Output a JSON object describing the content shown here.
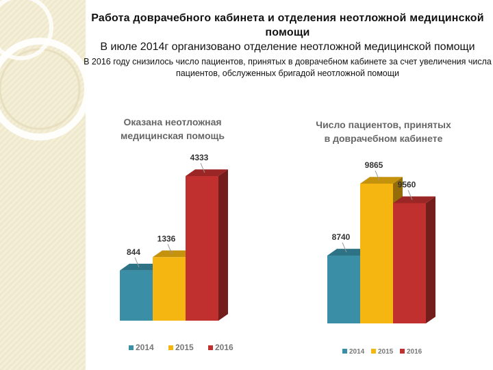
{
  "header": {
    "title": "Работа доврачебного кабинета и отделения неотложной медицинской помощи",
    "subtitle": "В июле 2014г организовано отделение неотложной медицинской помощи",
    "note": "В 2016 году снизилось число пациентов, принятых в доврачебном кабинете за счет увеличения числа пациентов, обслуженных бригадой неотложной помощи"
  },
  "colors": {
    "2014": "#3a8fa6",
    "2015": "#f6b611",
    "2016": "#c0302f"
  },
  "chart_data": [
    {
      "type": "bar",
      "title": "Оказана неотложная медицинская помощь",
      "categories": [
        "2014",
        "2015",
        "2016"
      ],
      "values": [
        844,
        1336,
        4333
      ],
      "ylim": [
        0,
        4333
      ],
      "legend": "bottom",
      "grid": false
    },
    {
      "type": "bar",
      "title": "Число пациентов, принятых в доврачебном кабинете",
      "categories": [
        "2014",
        "2015",
        "2016"
      ],
      "values": [
        8740,
        9865,
        9560
      ],
      "ylim": [
        8000,
        9865
      ],
      "legend": "bottom",
      "grid": false
    }
  ]
}
